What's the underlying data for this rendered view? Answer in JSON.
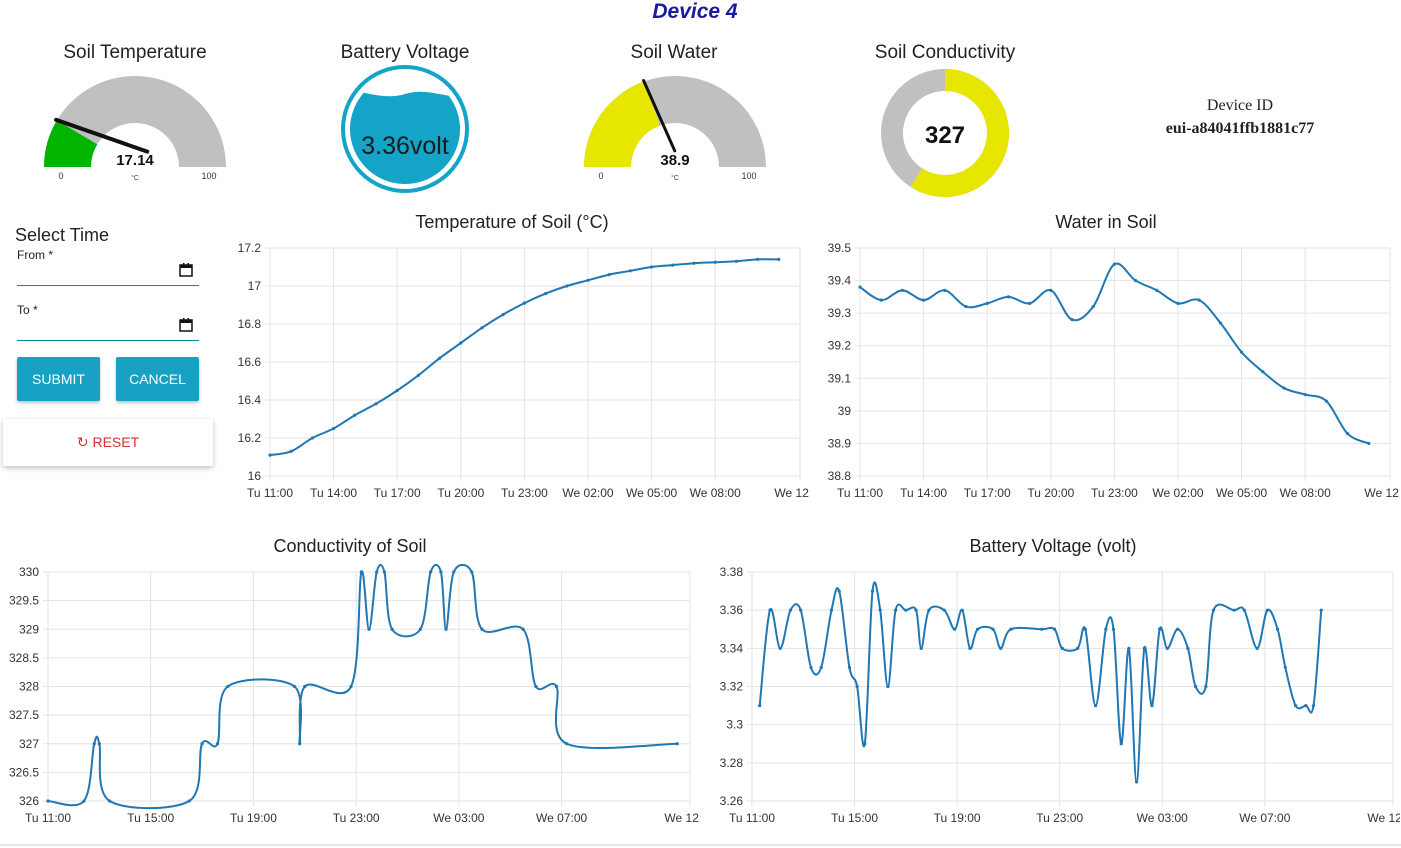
{
  "header": {
    "title": "Device 4"
  },
  "gauges": {
    "soil_temperature": {
      "title": "Soil Temperature",
      "value": "17.14",
      "unit": "°C",
      "min": "0",
      "max": "100",
      "fraction": 0.1714,
      "fill_color": "#00b400"
    },
    "battery_voltage": {
      "title": "Battery Voltage",
      "value": "3.36volt",
      "fill_color": "#13a4c8"
    },
    "soil_water": {
      "title": "Soil Water",
      "value": "38.9",
      "unit": "°C",
      "min": "0",
      "max": "100",
      "fraction": 0.389,
      "fill_color": "#e6e600"
    },
    "soil_conductivity": {
      "title": "Soil Conductivity",
      "value": "327",
      "fraction": 0.59,
      "fill_color": "#e6e600"
    }
  },
  "device": {
    "label": "Device ID",
    "id": "eui-a84041ffb1881c77"
  },
  "time_selector": {
    "title": "Select Time",
    "from_label": "From *",
    "to_label": "To *",
    "from_value": "",
    "to_value": "",
    "submit_label": "SUBMIT",
    "cancel_label": "CANCEL",
    "reset_label": "RESET"
  },
  "colors": {
    "line": "#1f77b4",
    "button": "#17a2c4",
    "reset": "#d32f2f",
    "gauge_bg": "#c0c0c0",
    "title": "#1a1aa0"
  },
  "chart_data": [
    {
      "id": "temp",
      "type": "line",
      "title": "Temperature of Soil (°C)",
      "ylim": [
        16,
        17.2
      ],
      "yticks": [
        "16",
        "16.2",
        "16.4",
        "16.6",
        "16.8",
        "17",
        "17.2"
      ],
      "xticks": [
        "Tu 11:00",
        "Tu 14:00",
        "Tu 17:00",
        "Tu 20:00",
        "Tu 23:00",
        "We 02:00",
        "We 05:00",
        "We 08:00",
        "We 12:00"
      ],
      "xtick_hours": [
        0,
        3,
        6,
        9,
        12,
        15,
        18,
        21,
        25
      ],
      "xlim_hours": [
        0,
        25
      ],
      "grid": true,
      "points": [
        [
          0,
          16.11
        ],
        [
          1,
          16.13
        ],
        [
          2,
          16.2
        ],
        [
          3,
          16.25
        ],
        [
          4,
          16.32
        ],
        [
          5,
          16.38
        ],
        [
          6,
          16.45
        ],
        [
          7,
          16.53
        ],
        [
          8,
          16.62
        ],
        [
          9,
          16.7
        ],
        [
          10,
          16.78
        ],
        [
          11,
          16.85
        ],
        [
          12,
          16.91
        ],
        [
          13,
          16.96
        ],
        [
          14,
          17.0
        ],
        [
          15,
          17.03
        ],
        [
          16,
          17.06
        ],
        [
          17,
          17.08
        ],
        [
          18,
          17.1
        ],
        [
          19,
          17.11
        ],
        [
          20,
          17.12
        ],
        [
          21,
          17.125
        ],
        [
          22,
          17.13
        ],
        [
          23,
          17.14
        ],
        [
          24,
          17.14
        ]
      ]
    },
    {
      "id": "water",
      "type": "line",
      "title": "Water in Soil",
      "ylim": [
        38.8,
        39.5
      ],
      "yticks": [
        "38.8",
        "38.9",
        "39",
        "39.1",
        "39.2",
        "39.3",
        "39.4",
        "39.5"
      ],
      "xticks": [
        "Tu 11:00",
        "Tu 14:00",
        "Tu 17:00",
        "Tu 20:00",
        "Tu 23:00",
        "We 02:00",
        "We 05:00",
        "We 08:00",
        "We 12:00"
      ],
      "xtick_hours": [
        0,
        3,
        6,
        9,
        12,
        15,
        18,
        21,
        25
      ],
      "xlim_hours": [
        0,
        25
      ],
      "grid": true,
      "points": [
        [
          0,
          39.38
        ],
        [
          1,
          39.34
        ],
        [
          2,
          39.37
        ],
        [
          3,
          39.34
        ],
        [
          4,
          39.37
        ],
        [
          5,
          39.32
        ],
        [
          6,
          39.33
        ],
        [
          7,
          39.35
        ],
        [
          8,
          39.33
        ],
        [
          9,
          39.37
        ],
        [
          10,
          39.28
        ],
        [
          11,
          39.32
        ],
        [
          12,
          39.45
        ],
        [
          13,
          39.4
        ],
        [
          14,
          39.37
        ],
        [
          15,
          39.33
        ],
        [
          16,
          39.34
        ],
        [
          17,
          39.27
        ],
        [
          18,
          39.18
        ],
        [
          19,
          39.12
        ],
        [
          20,
          39.07
        ],
        [
          21,
          39.05
        ],
        [
          22,
          39.03
        ],
        [
          23,
          38.93
        ],
        [
          24,
          38.9
        ]
      ]
    },
    {
      "id": "cond",
      "type": "line",
      "title": "Conductivity of Soil",
      "ylim": [
        326,
        330
      ],
      "yticks": [
        "326",
        "326.5",
        "327",
        "327.5",
        "328",
        "328.5",
        "329",
        "329.5",
        "330"
      ],
      "xticks": [
        "Tu 11:00",
        "Tu 15:00",
        "Tu 19:00",
        "Tu 23:00",
        "We 03:00",
        "We 07:00",
        "We 12:00"
      ],
      "xtick_hours": [
        0,
        4,
        8,
        12,
        16,
        20,
        25
      ],
      "xlim_hours": [
        0,
        25
      ],
      "grid": true,
      "points": [
        [
          0,
          326
        ],
        [
          1.4,
          326
        ],
        [
          1.8,
          327
        ],
        [
          2,
          327
        ],
        [
          2.4,
          326
        ],
        [
          5.5,
          326
        ],
        [
          6,
          327
        ],
        [
          6.6,
          327
        ],
        [
          7,
          328
        ],
        [
          9.6,
          328
        ],
        [
          9.8,
          327
        ],
        [
          10,
          328
        ],
        [
          11.8,
          328
        ],
        [
          12.2,
          330
        ],
        [
          12.5,
          329
        ],
        [
          12.8,
          330
        ],
        [
          13.1,
          330
        ],
        [
          13.4,
          329
        ],
        [
          14.5,
          329
        ],
        [
          14.9,
          330
        ],
        [
          15.3,
          330
        ],
        [
          15.5,
          329
        ],
        [
          15.8,
          330
        ],
        [
          16.5,
          330
        ],
        [
          16.9,
          329
        ],
        [
          18.5,
          329
        ],
        [
          19,
          328
        ],
        [
          19.8,
          328
        ],
        [
          20.2,
          327
        ],
        [
          24.5,
          327
        ]
      ]
    },
    {
      "id": "batt",
      "type": "line",
      "title": "Battery Voltage (volt)",
      "ylim": [
        3.26,
        3.38
      ],
      "yticks": [
        "3.26",
        "3.28",
        "3.3",
        "3.32",
        "3.34",
        "3.36",
        "3.38"
      ],
      "xticks": [
        "Tu 11:00",
        "Tu 15:00",
        "Tu 19:00",
        "Tu 23:00",
        "We 03:00",
        "We 07:00",
        "We 12:00"
      ],
      "xtick_hours": [
        0,
        4,
        8,
        12,
        16,
        20,
        25
      ],
      "xlim_hours": [
        0,
        25
      ],
      "grid": true,
      "points": [
        [
          0.3,
          3.31
        ],
        [
          0.7,
          3.36
        ],
        [
          1.1,
          3.34
        ],
        [
          1.5,
          3.36
        ],
        [
          1.9,
          3.36
        ],
        [
          2.3,
          3.33
        ],
        [
          2.7,
          3.33
        ],
        [
          3.1,
          3.36
        ],
        [
          3.4,
          3.37
        ],
        [
          3.8,
          3.33
        ],
        [
          4.1,
          3.32
        ],
        [
          4.4,
          3.29
        ],
        [
          4.7,
          3.37
        ],
        [
          5.0,
          3.36
        ],
        [
          5.3,
          3.32
        ],
        [
          5.6,
          3.36
        ],
        [
          6.0,
          3.36
        ],
        [
          6.4,
          3.36
        ],
        [
          6.6,
          3.34
        ],
        [
          6.9,
          3.36
        ],
        [
          7.5,
          3.36
        ],
        [
          7.9,
          3.35
        ],
        [
          8.2,
          3.36
        ],
        [
          8.5,
          3.34
        ],
        [
          8.8,
          3.35
        ],
        [
          9.4,
          3.35
        ],
        [
          9.7,
          3.34
        ],
        [
          10.1,
          3.35
        ],
        [
          11.3,
          3.35
        ],
        [
          11.8,
          3.35
        ],
        [
          12.1,
          3.34
        ],
        [
          12.7,
          3.34
        ],
        [
          13.0,
          3.35
        ],
        [
          13.4,
          3.31
        ],
        [
          13.8,
          3.35
        ],
        [
          14.1,
          3.35
        ],
        [
          14.4,
          3.29
        ],
        [
          14.7,
          3.34
        ],
        [
          15.0,
          3.27
        ],
        [
          15.3,
          3.34
        ],
        [
          15.6,
          3.31
        ],
        [
          15.9,
          3.35
        ],
        [
          16.2,
          3.34
        ],
        [
          16.6,
          3.35
        ],
        [
          17.0,
          3.34
        ],
        [
          17.3,
          3.32
        ],
        [
          17.7,
          3.32
        ],
        [
          18.0,
          3.36
        ],
        [
          18.8,
          3.36
        ],
        [
          19.2,
          3.36
        ],
        [
          19.7,
          3.34
        ],
        [
          20.1,
          3.36
        ],
        [
          20.5,
          3.35
        ],
        [
          20.8,
          3.33
        ],
        [
          21.2,
          3.31
        ],
        [
          21.6,
          3.31
        ],
        [
          21.9,
          3.31
        ],
        [
          22.2,
          3.36
        ]
      ]
    }
  ]
}
